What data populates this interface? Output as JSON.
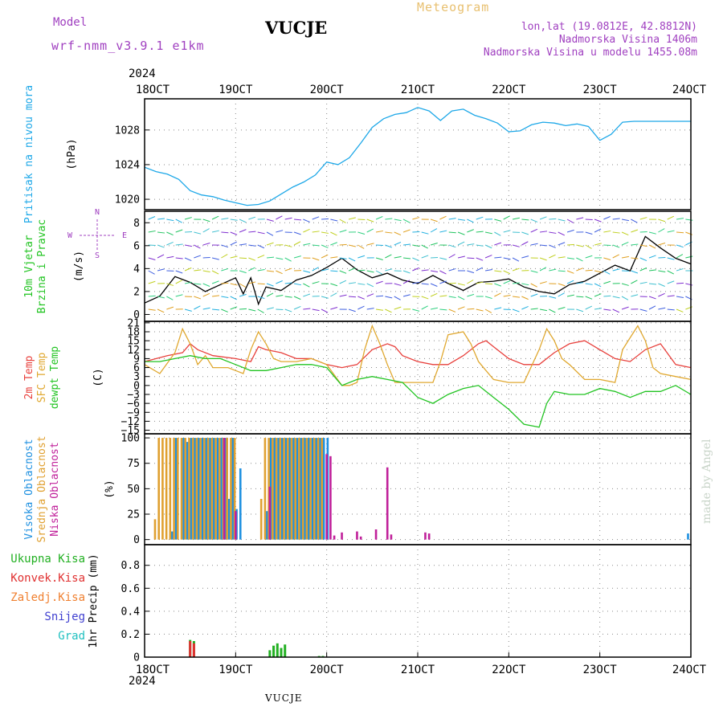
{
  "header": {
    "model_label": "Model",
    "model_name": "wrf-nmm_v3.9.1 e1km",
    "station": "VUCJE",
    "meteogram": "Meteogram",
    "lonlat": "lon,lat (19.0812E, 42.8812N)",
    "elevation": "Nadmorska Visina 1406m",
    "model_elevation": "Nadmorska Visina u modelu 1455.08m",
    "watermark": "made by Angel",
    "bottom_station": "VUCJE",
    "year_top": "2024",
    "year_bottom": "2024"
  },
  "colors": {
    "pressure": "#1ea8e8",
    "wind_label": "#22c422",
    "temp2m": "#e8403c",
    "sfc": "#e0a830",
    "dew": "#22c422",
    "high": "#1e90e0",
    "mid": "#e0a030",
    "low": "#c0209a",
    "total": "#22b022",
    "convective": "#e03030",
    "freezing": "#f08030",
    "snow": "#4040d0",
    "hail": "#20c0c0",
    "title_purple": "#a040c0",
    "meteogram": "#e8c070"
  },
  "chart_data": {
    "type": "line",
    "x_ticks": [
      "18OCT",
      "19OCT",
      "20OCT",
      "21OCT",
      "22OCT",
      "23OCT",
      "24OCT"
    ],
    "x_range_hours": [
      0,
      144
    ],
    "panels": [
      {
        "id": "pressure",
        "ylabel_lines": [
          "Pritisak na nivou mora",
          "(hPa)"
        ],
        "yticks": [
          1020,
          1024,
          1028
        ],
        "ylim": [
          1018.8,
          1031.6
        ],
        "series": [
          {
            "name": "Pritisak na nivou mora",
            "x": [
              0,
              3,
              6,
              9,
              12,
              15,
              18,
              21,
              24,
              27,
              30,
              33,
              36,
              39,
              42,
              45,
              48,
              51,
              54,
              57,
              60,
              63,
              66,
              69,
              72,
              75,
              78,
              81,
              84,
              87,
              90,
              93,
              96,
              99,
              102,
              105,
              108,
              111,
              114,
              117,
              120,
              123,
              126,
              129,
              132,
              135,
              138,
              141,
              144
            ],
            "y": [
              1023.7,
              1023.2,
              1022.9,
              1022.3,
              1021.0,
              1020.5,
              1020.3,
              1019.9,
              1019.6,
              1019.3,
              1019.4,
              1019.8,
              1020.6,
              1021.4,
              1022.0,
              1022.8,
              1024.3,
              1024.0,
              1024.8,
              1026.5,
              1028.3,
              1029.3,
              1029.8,
              1030.0,
              1030.6,
              1030.2,
              1029.1,
              1030.2,
              1030.4,
              1029.7,
              1029.3,
              1028.8,
              1027.8,
              1027.9,
              1028.6,
              1028.9,
              1028.8,
              1028.5,
              1028.7,
              1028.4,
              1026.8,
              1027.5,
              1028.9,
              1029.0,
              1029.0,
              1029.0,
              1029.0,
              1029.0,
              1029.0
            ]
          }
        ]
      },
      {
        "id": "wind",
        "ylabel_lines": [
          "10m Vjetar",
          "Brzina i Pravac",
          "(m/s)"
        ],
        "compass": [
          "N",
          "W",
          "E",
          "S"
        ],
        "yticks": [
          0,
          2,
          4,
          6,
          8
        ],
        "ylim": [
          -0.6,
          9.0
        ],
        "series": [
          {
            "name": "Brzina",
            "x": [
              0,
              4,
              8,
              12,
              16,
              20,
              24,
              26,
              28,
              30,
              32,
              36,
              40,
              44,
              48,
              52,
              56,
              60,
              64,
              68,
              72,
              76,
              80,
              84,
              88,
              92,
              96,
              100,
              104,
              108,
              112,
              116,
              120,
              124,
              128,
              132,
              136,
              140,
              144
            ],
            "y": [
              1.0,
              1.6,
              3.3,
              2.8,
              2.0,
              2.6,
              3.2,
              1.8,
              3.2,
              0.9,
              2.4,
              2.1,
              3.0,
              3.4,
              4.1,
              4.9,
              3.9,
              3.2,
              3.6,
              3.0,
              2.7,
              3.4,
              2.7,
              2.1,
              2.8,
              2.9,
              3.1,
              2.4,
              2.0,
              1.8,
              2.6,
              2.9,
              3.6,
              4.3,
              3.8,
              6.8,
              5.8,
              4.9,
              4.4
            ]
          }
        ]
      },
      {
        "id": "temperature",
        "ylabel_lines": [
          "2m Temp",
          "SFC Temp",
          "dewpt Temp",
          "(C)"
        ],
        "yticks": [
          21,
          18,
          15,
          12,
          9,
          6,
          3,
          0,
          -3,
          -6,
          -9,
          -12,
          -15
        ],
        "ylim": [
          -16.2,
          21.5
        ],
        "series": [
          {
            "name": "2m Temp",
            "x": [
              0,
              6,
              10,
              12,
              14,
              18,
              24,
              28,
              30,
              32,
              36,
              40,
              44,
              48,
              52,
              56,
              60,
              64,
              66,
              68,
              72,
              76,
              80,
              84,
              88,
              90,
              92,
              96,
              100,
              104,
              108,
              112,
              116,
              120,
              124,
              128,
              132,
              136,
              140,
              144
            ],
            "y": [
              8,
              10,
              11,
              14,
              12,
              10,
              9,
              8,
              13,
              12,
              11,
              9,
              9,
              7,
              6,
              7,
              12,
              14,
              13,
              10,
              8,
              7,
              7,
              10,
              14,
              15,
              13,
              9,
              7,
              7,
              11,
              14,
              15,
              12,
              9,
              8,
              12,
              14,
              7,
              6
            ]
          },
          {
            "name": "SFC Temp",
            "x": [
              0,
              4,
              8,
              10,
              12,
              14,
              16,
              18,
              22,
              24,
              26,
              28,
              30,
              32,
              34,
              36,
              40,
              44,
              48,
              52,
              54,
              56,
              58,
              60,
              62,
              64,
              66,
              70,
              72,
              76,
              78,
              80,
              84,
              86,
              88,
              90,
              92,
              96,
              100,
              104,
              106,
              108,
              110,
              112,
              116,
              120,
              124,
              126,
              128,
              130,
              132,
              134,
              136,
              140,
              144
            ],
            "y": [
              7,
              4,
              11,
              19,
              14,
              7,
              10,
              6,
              6,
              5,
              4,
              12,
              18,
              14,
              9,
              8,
              8,
              9,
              7,
              0,
              0,
              1,
              12,
              20,
              14,
              7,
              1,
              1,
              1,
              1,
              8,
              17,
              18,
              14,
              8,
              5,
              2,
              1,
              1,
              12,
              19,
              15,
              9,
              7,
              2,
              2,
              1,
              12,
              16,
              20,
              15,
              6,
              4,
              3,
              2
            ]
          },
          {
            "name": "dewpt Temp",
            "x": [
              0,
              4,
              8,
              12,
              16,
              20,
              24,
              28,
              32,
              36,
              40,
              44,
              48,
              52,
              56,
              60,
              64,
              68,
              72,
              76,
              80,
              84,
              88,
              90,
              92,
              96,
              100,
              104,
              106,
              108,
              112,
              116,
              120,
              124,
              128,
              132,
              136,
              140,
              144
            ],
            "y": [
              8,
              8,
              9,
              10,
              9,
              9,
              7,
              5,
              5,
              6,
              7,
              7,
              6,
              0,
              2,
              3,
              2,
              1,
              -4,
              -6,
              -3,
              -1,
              0,
              -2,
              -4,
              -8,
              -13,
              -14,
              -6,
              -2,
              -3,
              -3,
              -1,
              -2,
              -4,
              -2,
              -2,
              0,
              -3
            ]
          }
        ]
      },
      {
        "id": "clouds",
        "ylabel_lines": [
          "Visoka Oblacnost",
          "Srednja Oblacnost",
          "Niska Oblacnost",
          "(%)"
        ],
        "yticks": [
          0,
          25,
          50,
          75,
          100
        ],
        "ylim": [
          -5,
          104
        ],
        "series": [
          {
            "name": "Visoka Oblacnost",
            "type": "bar",
            "x": [
              7,
              8,
              10,
              11,
              12,
              13,
              14,
              15,
              16,
              17,
              18,
              19,
              20,
              21,
              22,
              23,
              24,
              25,
              32,
              33,
              34,
              35,
              36,
              37,
              38,
              39,
              40,
              41,
              42,
              43,
              44,
              45,
              46,
              47,
              48,
              143
            ],
            "y": [
              8,
              100,
              100,
              96,
              100,
              100,
              100,
              100,
              100,
              100,
              100,
              100,
              100,
              100,
              40,
              100,
              30,
              70,
              28,
              100,
              100,
              100,
              100,
              100,
              100,
              100,
              100,
              100,
              100,
              100,
              100,
              100,
              100,
              100,
              100,
              6
            ]
          },
          {
            "name": "Srednja Oblacnost",
            "type": "bar",
            "x": [
              3,
              4,
              5,
              6,
              7,
              8,
              9,
              10,
              11,
              12,
              13,
              14,
              15,
              16,
              17,
              18,
              19,
              20,
              21,
              22,
              23,
              24,
              31,
              32,
              33,
              34,
              35,
              36,
              37,
              38,
              39,
              40,
              41,
              42,
              43,
              44,
              45,
              46,
              47
            ],
            "y": [
              20,
              100,
              100,
              100,
              100,
              100,
              100,
              100,
              100,
              100,
              100,
              100,
              100,
              100,
              100,
              100,
              100,
              100,
              100,
              100,
              100,
              100,
              40,
              100,
              100,
              100,
              100,
              100,
              100,
              100,
              100,
              100,
              100,
              100,
              100,
              100,
              100,
              100,
              100
            ]
          },
          {
            "name": "Niska Oblacnost",
            "type": "bar",
            "x": [
              21,
              24,
              33,
              48,
              49,
              50,
              52,
              56,
              57,
              61,
              64,
              65,
              74,
              75
            ],
            "y": [
              100,
              28,
              52,
              84,
              82,
              4,
              7,
              8,
              3,
              10,
              71,
              5,
              7,
              6
            ]
          }
        ]
      },
      {
        "id": "precip",
        "ylabel_lines": [
          "1hr Precip (mm)"
        ],
        "legend": [
          "Ukupna Kisa",
          "Konvek.Kisa",
          "Zaledj.Kisa",
          "Snijeg",
          "Grad"
        ],
        "yticks": [
          0,
          0.2,
          0.4,
          0.6,
          0.8
        ],
        "yticklabels": [
          "0",
          "0.2",
          "0.4",
          "0.6",
          "0.8"
        ],
        "ylim": [
          0,
          0.98
        ],
        "series": [
          {
            "name": "Ukupna Kisa",
            "type": "bar",
            "x": [
              12,
              13,
              33,
              34,
              35,
              36,
              37,
              46,
              47
            ],
            "y": [
              0.15,
              0.14,
              0.06,
              0.1,
              0.12,
              0.08,
              0.11,
              0.01,
              0.01
            ]
          },
          {
            "name": "Konvek.Kisa",
            "type": "bar",
            "x": [
              12,
              13
            ],
            "y": [
              0.14,
              0.12
            ]
          }
        ]
      }
    ]
  }
}
